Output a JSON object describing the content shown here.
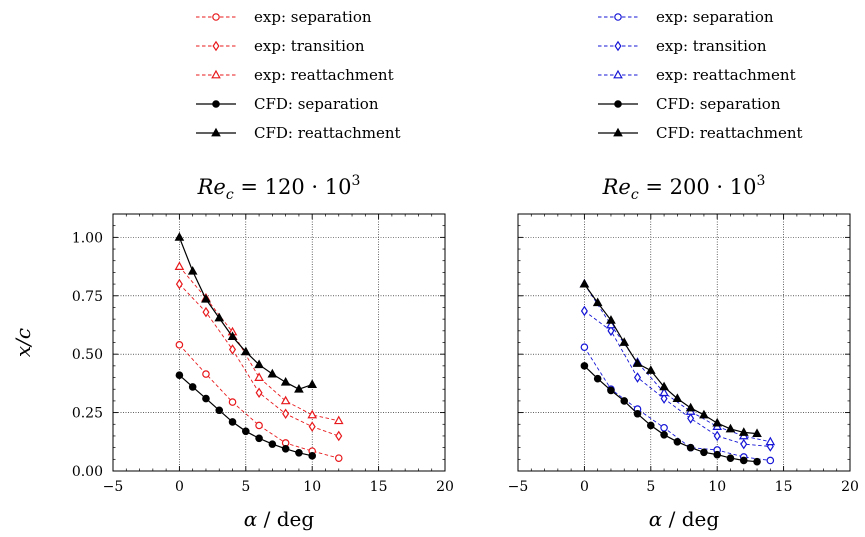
{
  "chart_data": [
    {
      "type": "line",
      "title": "Re_c = 120 · 10^3",
      "title_parts": {
        "main": "Re",
        "sub": "c",
        "rest": " = 120 · 10",
        "sup": "3"
      },
      "xlabel": "α / deg",
      "ylabel": "x/c",
      "xlim": [
        -5,
        20
      ],
      "ylim": [
        0,
        1.1
      ],
      "xticks": [
        -5,
        0,
        5,
        10,
        15,
        20
      ],
      "yticks": [
        0.0,
        0.25,
        0.5,
        0.75,
        1.0
      ],
      "xtick_labels": [
        "−5",
        "0",
        "5",
        "10",
        "15",
        "20"
      ],
      "ytick_labels": [
        "0.00",
        "0.25",
        "0.50",
        "0.75",
        "1.00"
      ],
      "grid": true,
      "series": [
        {
          "name": "exp: separation",
          "style": "dashed",
          "marker": "circle-open",
          "color": "#e8191c",
          "x": [
            0,
            2,
            4,
            6,
            8,
            10,
            12
          ],
          "y": [
            0.54,
            0.415,
            0.295,
            0.195,
            0.12,
            0.085,
            0.055
          ]
        },
        {
          "name": "exp: transition",
          "style": "dashed",
          "marker": "diamond-open",
          "color": "#e8191c",
          "x": [
            0,
            2,
            4,
            6,
            8,
            10,
            12
          ],
          "y": [
            0.8,
            0.68,
            0.52,
            0.335,
            0.245,
            0.19,
            0.15
          ]
        },
        {
          "name": "exp: reattachment",
          "style": "dashed",
          "marker": "triangle-open",
          "color": "#e8191c",
          "x": [
            0,
            2,
            4,
            6,
            8,
            10,
            12
          ],
          "y": [
            0.875,
            0.74,
            0.595,
            0.4,
            0.3,
            0.24,
            0.215
          ]
        },
        {
          "name": "CFD: separation",
          "style": "solid",
          "marker": "circle-filled",
          "color": "#000000",
          "x": [
            0,
            1,
            2,
            3,
            4,
            5,
            6,
            7,
            8,
            9,
            10
          ],
          "y": [
            0.41,
            0.36,
            0.31,
            0.26,
            0.21,
            0.17,
            0.14,
            0.115,
            0.095,
            0.078,
            0.065
          ]
        },
        {
          "name": "CFD: reattachment",
          "style": "solid",
          "marker": "triangle-filled",
          "color": "#000000",
          "x": [
            0,
            1,
            2,
            3,
            4,
            5,
            6,
            7,
            8,
            9,
            10
          ],
          "y": [
            1.0,
            0.855,
            0.735,
            0.655,
            0.575,
            0.51,
            0.455,
            0.415,
            0.38,
            0.35,
            0.37
          ]
        }
      ]
    },
    {
      "type": "line",
      "title": "Re_c = 200 · 10^3",
      "title_parts": {
        "main": "Re",
        "sub": "c",
        "rest": " = 200 · 10",
        "sup": "3"
      },
      "xlabel": "α / deg",
      "ylabel": "",
      "xlim": [
        -5,
        20
      ],
      "ylim": [
        0,
        1.1
      ],
      "xticks": [
        -5,
        0,
        5,
        10,
        15,
        20
      ],
      "yticks": [
        0.0,
        0.25,
        0.5,
        0.75,
        1.0
      ],
      "xtick_labels": [
        "−5",
        "0",
        "5",
        "10",
        "15",
        "20"
      ],
      "ytick_labels": [],
      "grid": true,
      "series": [
        {
          "name": "exp: separation",
          "style": "dashed",
          "marker": "circle-open",
          "color": "#1515d6",
          "x": [
            0,
            2,
            4,
            6,
            8,
            10,
            12,
            14
          ],
          "y": [
            0.53,
            0.35,
            0.265,
            0.185,
            0.1,
            0.09,
            0.06,
            0.045
          ]
        },
        {
          "name": "exp: transition",
          "style": "dashed",
          "marker": "diamond-open",
          "color": "#1515d6",
          "x": [
            0,
            2,
            4,
            6,
            8,
            10,
            12,
            14
          ],
          "y": [
            0.685,
            0.6,
            0.4,
            0.31,
            0.225,
            0.15,
            0.115,
            0.105
          ]
        },
        {
          "name": "exp: reattachment",
          "style": "dashed",
          "marker": "triangle-open",
          "color": "#1515d6",
          "x": [
            0,
            2,
            4,
            6,
            8,
            10,
            12,
            14
          ],
          "y": [
            0.8,
            0.625,
            0.465,
            0.335,
            0.255,
            0.19,
            0.15,
            0.125
          ]
        },
        {
          "name": "CFD: separation",
          "style": "solid",
          "marker": "circle-filled",
          "color": "#000000",
          "x": [
            0,
            1,
            2,
            3,
            4,
            5,
            6,
            7,
            8,
            9,
            10,
            11,
            12,
            13
          ],
          "y": [
            0.45,
            0.395,
            0.345,
            0.3,
            0.245,
            0.195,
            0.155,
            0.125,
            0.1,
            0.08,
            0.07,
            0.055,
            0.045,
            0.04
          ]
        },
        {
          "name": "CFD: reattachment",
          "style": "solid",
          "marker": "triangle-filled",
          "color": "#000000",
          "x": [
            0,
            1,
            2,
            3,
            4,
            5,
            6,
            7,
            8,
            9,
            10,
            11,
            12,
            13
          ],
          "y": [
            0.8,
            0.72,
            0.645,
            0.55,
            0.46,
            0.43,
            0.36,
            0.31,
            0.27,
            0.24,
            0.205,
            0.18,
            0.165,
            0.16
          ]
        }
      ]
    }
  ]
}
